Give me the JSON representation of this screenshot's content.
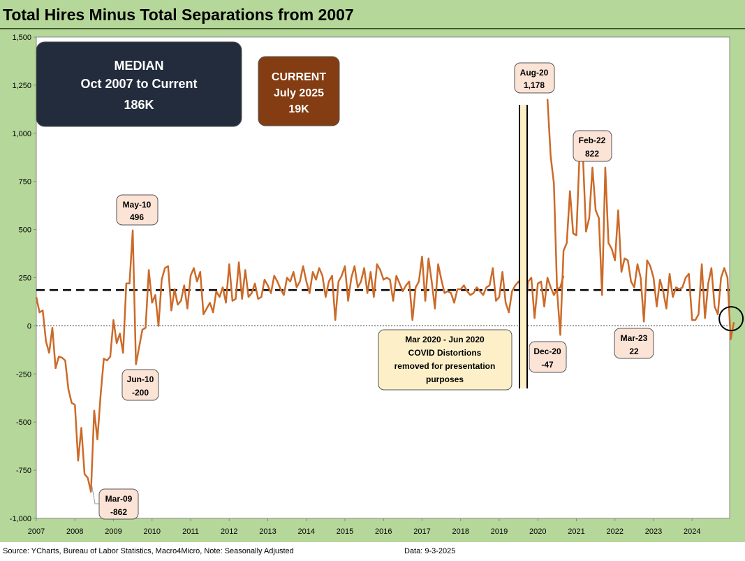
{
  "title": "Total Hires Minus Total Separations from 2007",
  "footer": {
    "source": "Source: YCharts, Bureau of Labor Statistics, Macro4Micro, Note: Seasonally Adjusted",
    "date": "Data: 9-3-2025"
  },
  "colors": {
    "frame": "#b5d79a",
    "plot_background": "#ffffff",
    "line": "#cc6a28",
    "median_box": "#222c3c",
    "current_box": "#843c12",
    "callout_fill": "#fbe3d6",
    "covid_note_fill": "#fdf0c8"
  },
  "median_box": {
    "line1": "MEDIAN",
    "line2": "Oct 2007 to Current",
    "line3": "186K"
  },
  "current_box": {
    "line1": "CURRENT",
    "line2": "July 2025",
    "line3": "19K"
  },
  "covid_note": {
    "line1": "Mar 2020 - Jun 2020",
    "line2": "COVID Distortions",
    "line3": "removed for presentation",
    "line4": "purposes"
  },
  "callouts": [
    {
      "id": "aug20",
      "line1": "Aug-20",
      "line2": "1,178",
      "month": 159,
      "value": 1178
    },
    {
      "id": "feb22",
      "line1": "Feb-22",
      "line2": "822",
      "month": 177,
      "value": 822
    },
    {
      "id": "may10",
      "line1": "May-10",
      "line2": "496",
      "month": 40,
      "value": 496
    },
    {
      "id": "jun10",
      "line1": "Jun-10",
      "line2": "-200",
      "month": 41,
      "value": -200
    },
    {
      "id": "dec20",
      "line1": "Dec-20",
      "line2": "-47",
      "month": 163,
      "value": -47
    },
    {
      "id": "mar23",
      "line1": "Mar-23",
      "line2": "22",
      "month": 190,
      "value": 22
    },
    {
      "id": "mar09",
      "line1": "Mar-09",
      "line2": "-862",
      "month": 26,
      "value": -862
    }
  ],
  "chart_data": {
    "type": "line",
    "title": "Total Hires Minus Total Separations from 2007",
    "x_unit": "months since Jan 2007",
    "ylim": [
      -1000,
      1500
    ],
    "y_ticks": [
      1500,
      1250,
      1000,
      750,
      500,
      250,
      0,
      -250,
      -500,
      -750,
      -1000
    ],
    "y_tick_labels": [
      "1,500",
      "1,250",
      "1,000",
      "750",
      "500",
      "250",
      "0",
      "-250",
      "-500",
      "-750",
      "-1,000"
    ],
    "x_tick_labels": [
      "2007",
      "2008",
      "2009",
      "2010",
      "2011",
      "2012",
      "2013",
      "2014",
      "2015",
      "2016",
      "2017",
      "2018",
      "2019",
      "2020",
      "2021",
      "2022",
      "2023",
      "2024"
    ],
    "grid": false,
    "median": 186,
    "zero_line": 0,
    "series": [
      {
        "segments": [
          {
            "start_month": 0,
            "values": [
              150,
              70,
              80,
              -80,
              -140,
              -10,
              -220,
              -160,
              -165,
              -180,
              -330,
              -400,
              -410,
              -700,
              -530,
              -770,
              -790,
              -862,
              -440,
              -590,
              -360,
              -170,
              -180,
              -160,
              30,
              -90,
              -40,
              -140,
              220,
              220,
              496,
              -200,
              -110,
              -20,
              -10,
              290,
              120,
              160,
              0,
              240,
              300,
              310,
              80,
              190,
              110,
              130,
              210,
              90,
              260,
              300,
              230,
              280,
              60,
              90,
              120,
              70,
              180,
              150,
              200,
              120,
              320,
              130,
              140,
              330,
              140,
              290,
              150,
              170,
              220,
              140,
              150,
              240,
              210,
              170,
              260,
              230,
              190,
              160,
              250,
              230,
              280,
              200,
              230,
              310,
              230,
              170,
              280,
              240,
              300,
              260,
              150,
              230,
              260,
              30,
              230,
              260,
              310,
              130,
              250,
              310,
              200,
              230,
              300,
              170,
              280,
              150,
              320,
              290,
              240,
              250,
              240,
              130,
              260,
              220,
              180,
              210,
              230,
              30,
              200,
              230,
              360,
              130,
              350,
              230,
              90,
              320,
              240,
              170,
              180,
              170,
              120,
              190,
              190,
              210,
              180,
              160,
              170,
              200,
              180,
              160,
              200,
              210,
              300,
              130,
              150,
              280,
              120,
              70,
              180,
              210,
              230,
              200,
              30,
              230,
              250,
              40,
              220,
              230,
              100,
              250,
              200,
              160,
              190,
              200,
              260
            ]
          },
          {
            "start_month": 159,
            "values": [
              1178,
              880,
              740,
              180,
              -47,
              390,
              430,
              700,
              480,
              470,
              900,
              900,
              490,
              560,
              822,
              600,
              560,
              160,
              822,
              430,
              400,
              340,
              600,
              280,
              350,
              340,
              230,
              200,
              320,
              250,
              22,
              340,
              310,
              250,
              100,
              240,
              180,
              90,
              270,
              150,
              200,
              190,
              200,
              250,
              270,
              30,
              30,
              60,
              320,
              40,
              220,
              300,
              100,
              60,
              250,
              300,
              250,
              -70,
              19
            ]
          }
        ]
      }
    ]
  }
}
